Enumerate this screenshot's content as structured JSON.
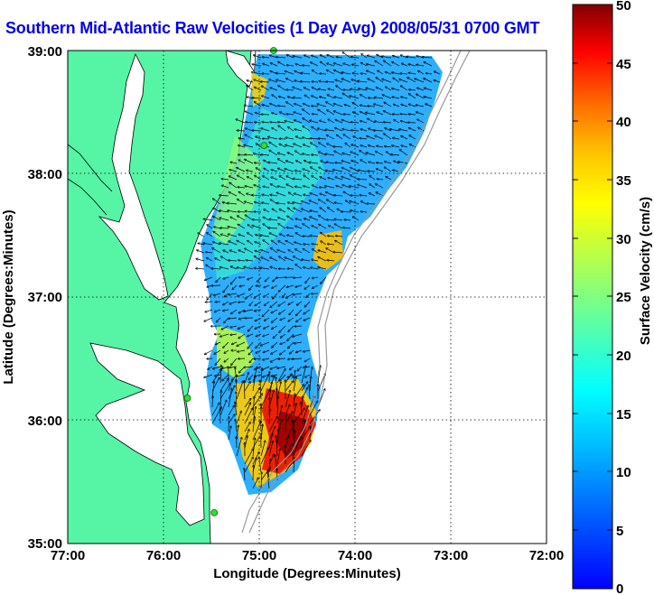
{
  "title": "Southern Mid-Atlantic Raw Velocities (1 Day Avg) 2008/05/31 0700 GMT",
  "x_axis": {
    "label": "Longitude (Degrees:Minutes)",
    "ticks": [
      "77:00",
      "76:00",
      "75:00",
      "74:00",
      "73:00",
      "72:00"
    ]
  },
  "y_axis": {
    "label": "Latitude (Degrees:Minutes)",
    "ticks": [
      "39:00",
      "38:00",
      "37:00",
      "36:00",
      "35:00"
    ]
  },
  "colorbar": {
    "label": "Surface Velocity (cm/s)",
    "ticks": [
      "50",
      "45",
      "40",
      "35",
      "30",
      "25",
      "20",
      "15",
      "10",
      "5",
      "0"
    ],
    "min": 0,
    "max": 50,
    "colormap": "jet"
  },
  "colors": {
    "land": "#55f5a5",
    "title": "#0000ee",
    "station_marker": "#33dd33",
    "bathymetry": "#999999"
  },
  "map_extent": {
    "lon_range": [
      -77,
      -72
    ],
    "lat_range": [
      35,
      39
    ]
  },
  "stations": [
    {
      "lon": -74.85,
      "lat": 39.0
    },
    {
      "lon": -74.95,
      "lat": 38.23
    },
    {
      "lon": -75.75,
      "lat": 36.18
    },
    {
      "lon": -75.47,
      "lat": 35.25
    }
  ]
}
